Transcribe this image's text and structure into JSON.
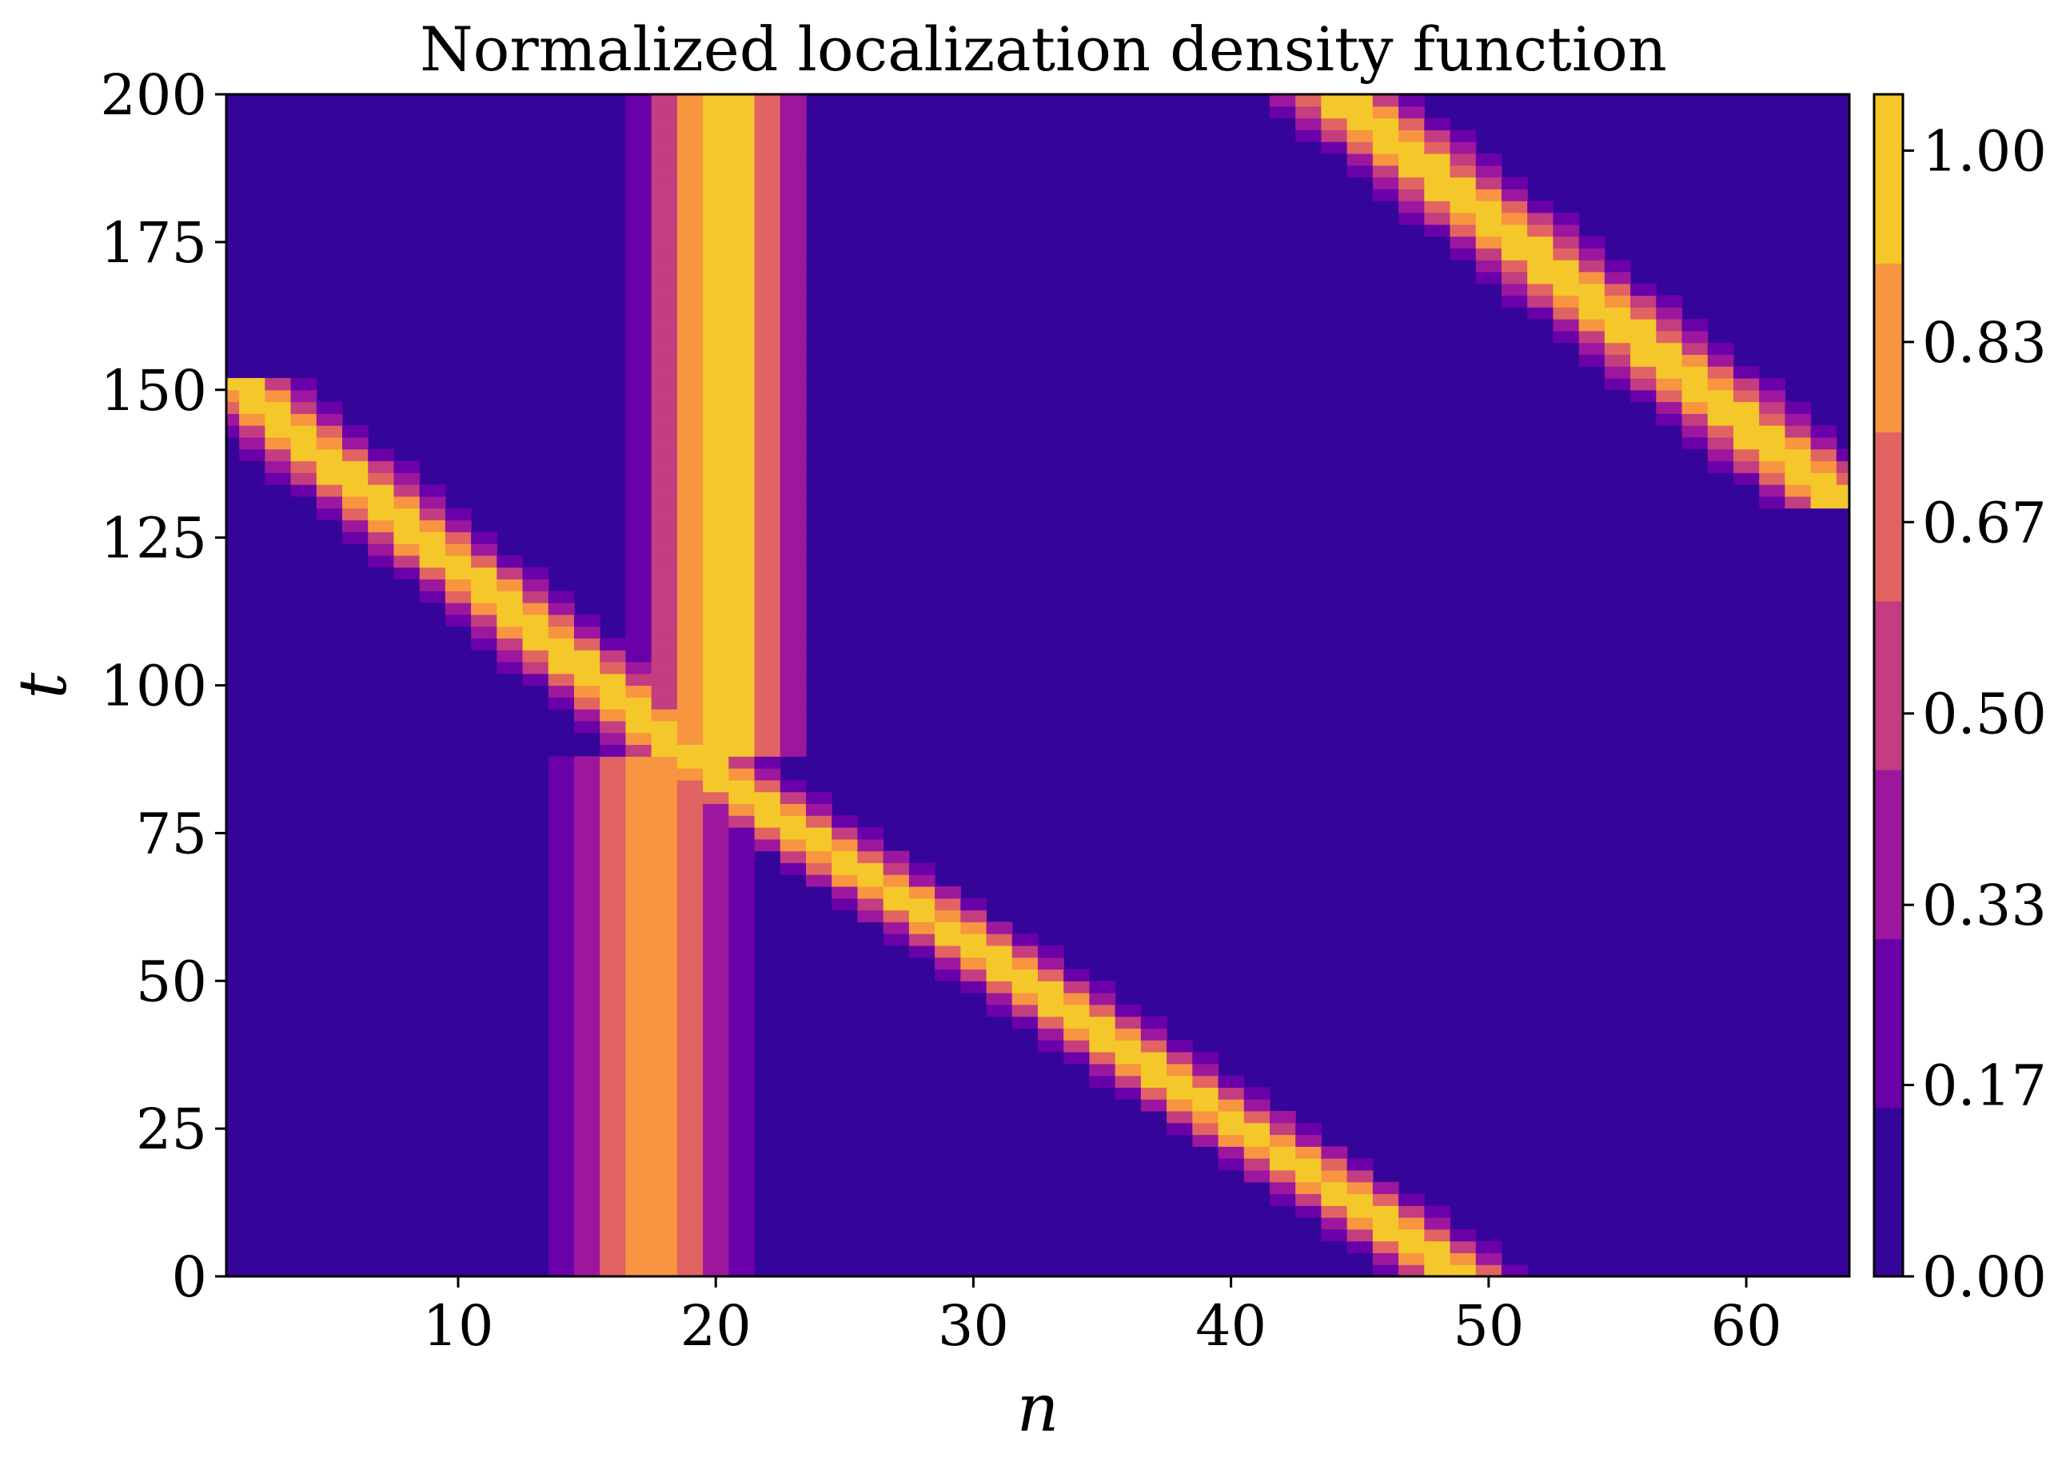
{
  "chart_data": {
    "type": "heatmap",
    "title": "Normalized localization density function",
    "xlabel": "n",
    "ylabel": "t",
    "xlim": [
      1,
      64
    ],
    "ylim": [
      0,
      200
    ],
    "x_ticks": [
      10,
      20,
      30,
      40,
      50,
      60
    ],
    "y_ticks": [
      0,
      25,
      50,
      75,
      100,
      125,
      150,
      175,
      200
    ],
    "colorbar": {
      "ticks": [
        "0.00",
        "0.17",
        "0.33",
        "0.50",
        "0.67",
        "0.83",
        "1.00"
      ],
      "levels": [
        0,
        0.1429,
        0.2857,
        0.4286,
        0.5714,
        0.7143,
        0.8571,
        1.0
      ],
      "colors": [
        "#350498",
        "#6a00a8",
        "#9c179e",
        "#c33d80",
        "#e16462",
        "#f89540",
        "#f4c82b"
      ],
      "range": [
        0,
        1.05
      ]
    },
    "colormap": "plasma",
    "grid": false,
    "features": [
      {
        "kind": "stationary",
        "center_n": 17.5,
        "t_range": [
          0,
          88
        ],
        "width": 2.6,
        "peak": 0.88
      },
      {
        "kind": "stationary",
        "center_n": 20.3,
        "t_range": [
          88,
          200
        ],
        "width": 2.6,
        "peak": 0.95
      },
      {
        "kind": "moving",
        "n_at_t0": 49,
        "n_at_t1": 19,
        "t_range": [
          0,
          88
        ],
        "width": 2.0,
        "peak": 1.0
      },
      {
        "kind": "moving",
        "n_at_t0": 19,
        "n_at_t1": 1,
        "t_range": [
          88,
          152
        ],
        "width": 2.0,
        "peak": 1.0
      },
      {
        "kind": "moving",
        "n_at_t0": 64,
        "n_at_t1": 44,
        "t_range": [
          130,
          200
        ],
        "width": 2.2,
        "peak": 1.0
      }
    ]
  }
}
